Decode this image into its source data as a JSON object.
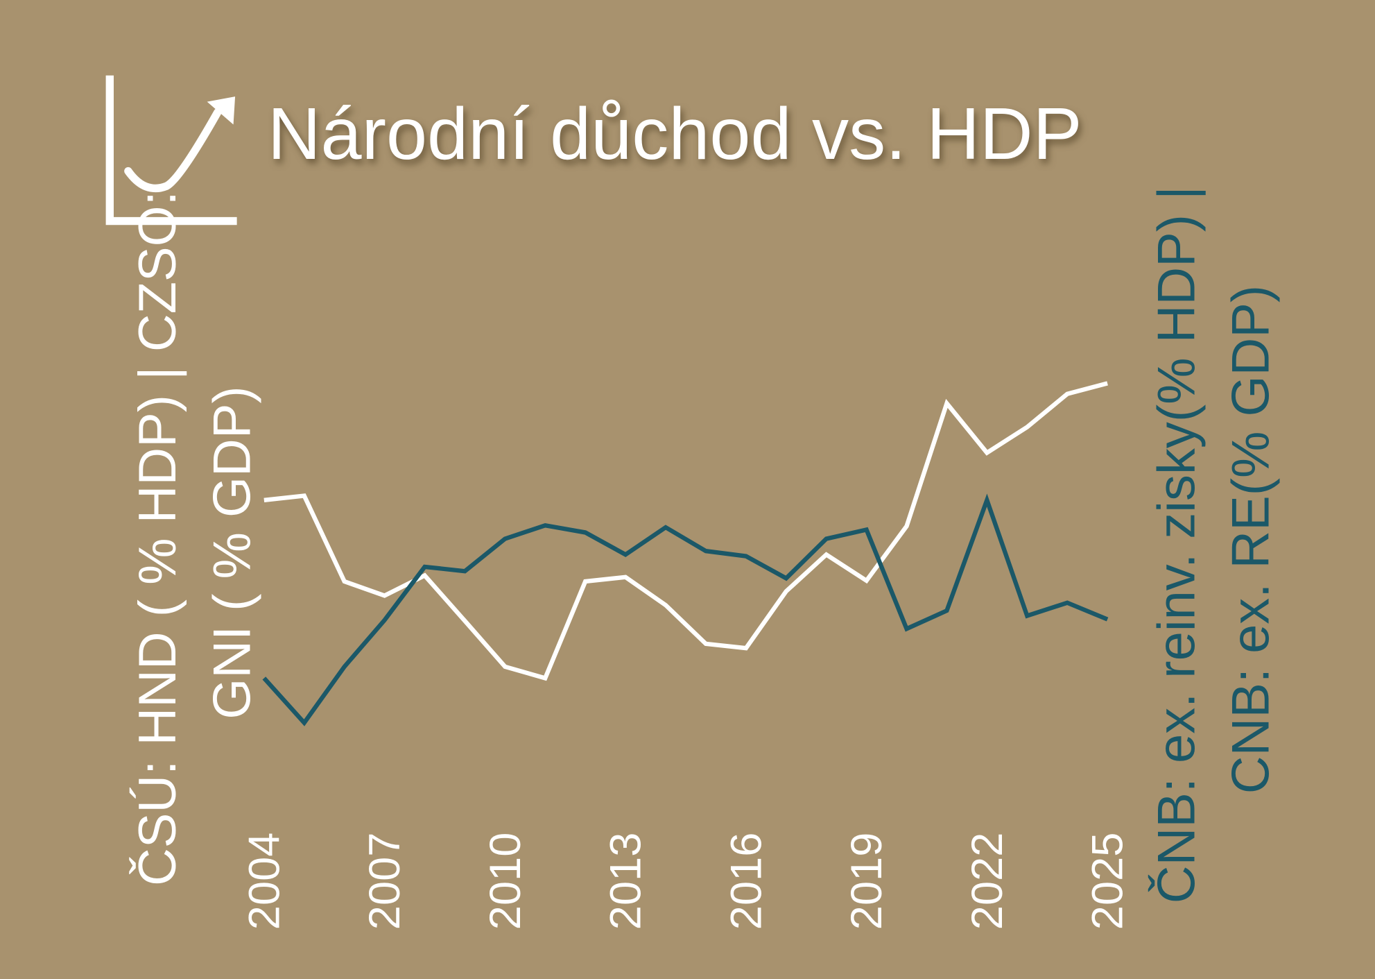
{
  "chart_data": {
    "type": "line",
    "title": "Národní důchod vs. HDP",
    "x": [
      2004,
      2005,
      2006,
      2007,
      2008,
      2009,
      2010,
      2011,
      2012,
      2013,
      2014,
      2015,
      2016,
      2017,
      2018,
      2019,
      2020,
      2021,
      2022,
      2023,
      2024,
      2025
    ],
    "xlim": [
      2004,
      2025
    ],
    "xticks": [
      2004,
      2007,
      2010,
      2013,
      2016,
      2019,
      2022,
      2025
    ],
    "ylim": [
      0,
      100
    ],
    "series": [
      {
        "name": [
          "ČSÚ: HND ( % HDP) | CZSO:",
          "GNI ( % GDP)"
        ],
        "color": "#ffffff",
        "values": [
          62.2,
          63.3,
          41.6,
          38.0,
          43.1,
          31.6,
          20.0,
          17.1,
          41.6,
          42.7,
          35.6,
          25.8,
          24.7,
          39.1,
          48.4,
          41.8,
          55.6,
          86.7,
          74.2,
          80.7,
          89.1,
          91.8
        ]
      },
      {
        "name": [
          "ČNB: ex. reinv. zisky(% HDP) |",
          "CNB: ex. RE(% GDP)"
        ],
        "color": "#1b5868",
        "values": [
          17.1,
          5.8,
          20.0,
          31.8,
          45.3,
          44.2,
          52.4,
          55.8,
          54.0,
          48.4,
          55.3,
          49.3,
          48.0,
          42.4,
          52.4,
          54.7,
          29.6,
          34.2,
          62.2,
          32.9,
          36.2,
          32.0
        ]
      }
    ]
  }
}
